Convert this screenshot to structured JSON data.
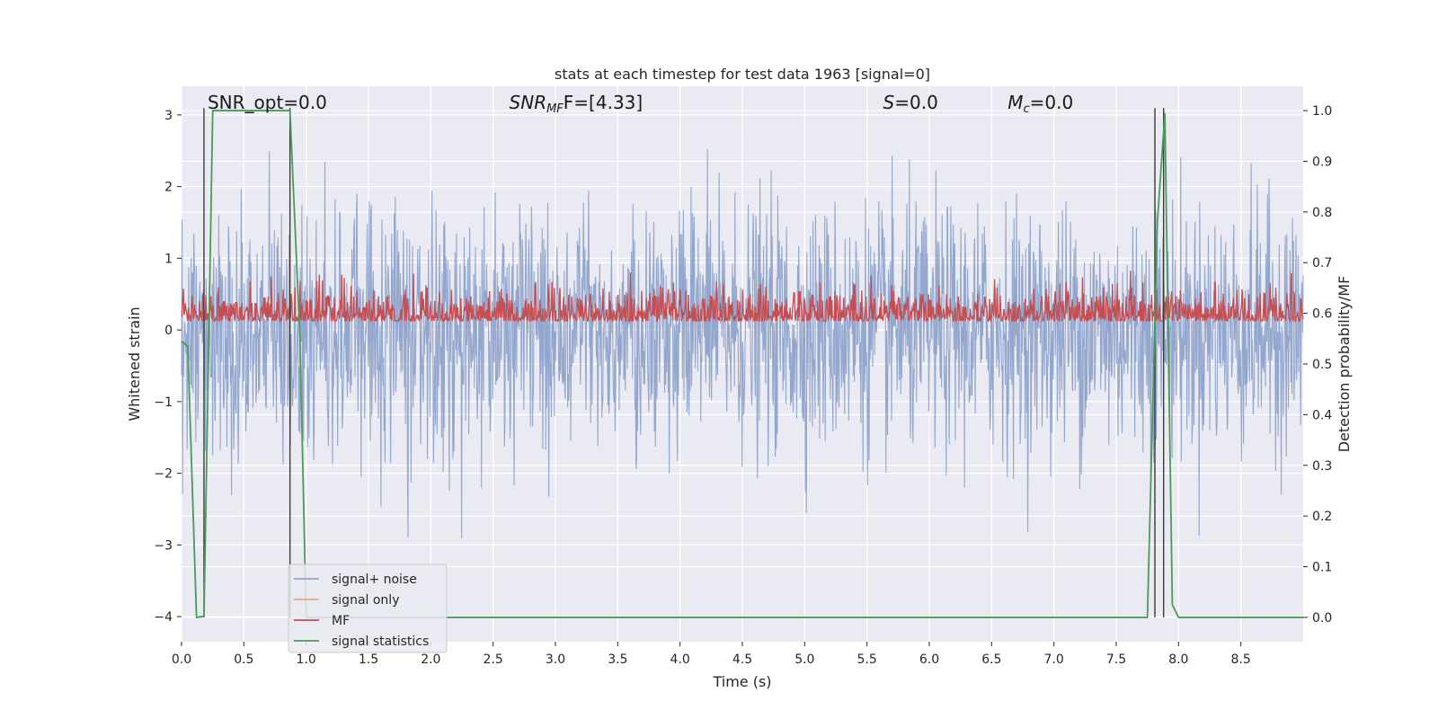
{
  "chart_data": {
    "type": "line",
    "title": "stats at each timestep for test data 1963 [signal=0]",
    "xlabel": "Time (s)",
    "ylabel": "Whitened strain",
    "y2label": "Detection probability/MF",
    "xlim": [
      0,
      9.0
    ],
    "ylim": [
      -4.35,
      3.4
    ],
    "y2lim": [
      -0.048,
      1.048
    ],
    "xticks": [
      "0.0",
      "0.5",
      "1.0",
      "1.5",
      "2.0",
      "2.5",
      "3.0",
      "3.5",
      "4.0",
      "4.5",
      "5.0",
      "5.5",
      "6.0",
      "6.5",
      "7.0",
      "7.5",
      "8.0",
      "8.5"
    ],
    "yticks": [
      "3",
      "2",
      "1",
      "0",
      "−1",
      "−2",
      "−3",
      "−4"
    ],
    "y2ticks": [
      "1.0",
      "0.9",
      "0.8",
      "0.7",
      "0.6",
      "0.5",
      "0.4",
      "0.3",
      "0.2",
      "0.1",
      "0.0"
    ],
    "grid": true,
    "legend_placement": "lower-left",
    "annotations": [
      {
        "id": "snr-opt",
        "x": 0.18,
        "parts": [
          {
            "t": "SNR_opt=0.0",
            "s": "normal"
          }
        ]
      },
      {
        "id": "snr-mf",
        "x": 2.6,
        "parts": [
          {
            "t": "SNR",
            "s": "italic"
          },
          {
            "t": "MF",
            "s": "italic-sub"
          },
          {
            "t": "F=[4.33]",
            "s": "normal"
          }
        ]
      },
      {
        "id": "s",
        "x": 5.6,
        "parts": [
          {
            "t": "S",
            "s": "italic"
          },
          {
            "t": "=0.0",
            "s": "normal"
          }
        ]
      },
      {
        "id": "mc",
        "x": 6.6,
        "parts": [
          {
            "t": "M",
            "s": "italic"
          },
          {
            "t": "c",
            "s": "italic-sub"
          },
          {
            "t": "=0.0",
            "s": "normal"
          }
        ]
      }
    ],
    "vlines": [
      0.18,
      0.87,
      7.81,
      7.88
    ],
    "series": [
      {
        "name": "signal+ noise",
        "color": "#8ea3cb",
        "axis": "left",
        "kind": "noise",
        "sigma": 0.85,
        "peak_max": 3.05,
        "peak_min": -4.0
      },
      {
        "name": "signal only",
        "color": "#e8a488",
        "axis": "left",
        "kind": "flat",
        "value": 0.0
      },
      {
        "name": "MF",
        "color": "#c44e52",
        "axis": "right",
        "kind": "mf",
        "base": 0.595,
        "top_max": 0.705,
        "bottom_min": 0.585
      },
      {
        "name": "signal statistics",
        "color": "#4c9a5b",
        "axis": "right",
        "kind": "polyline",
        "x": [
          0.0,
          0.05,
          0.12,
          0.18,
          0.25,
          0.87,
          0.95,
          1.0,
          7.75,
          7.83,
          7.89,
          7.95,
          8.0,
          9.0
        ],
        "y": [
          0.545,
          0.535,
          0.0,
          0.002,
          1.0,
          1.0,
          0.55,
          0.0,
          0.0,
          0.78,
          0.995,
          0.025,
          0.0,
          0.0
        ]
      }
    ]
  }
}
